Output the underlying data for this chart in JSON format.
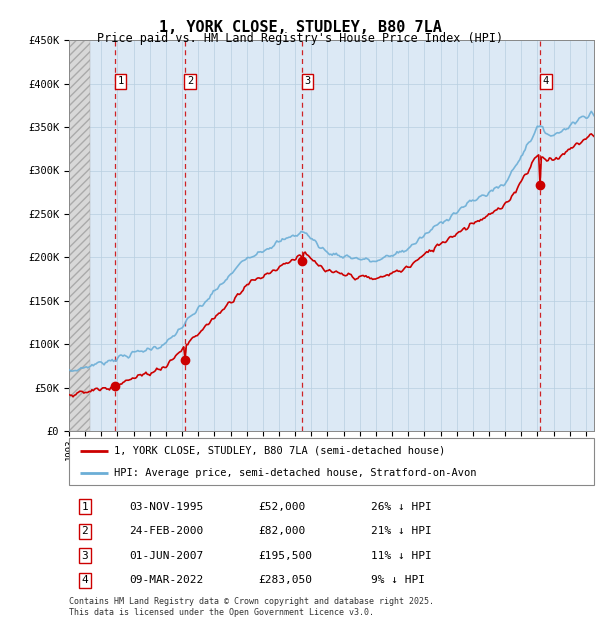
{
  "title": "1, YORK CLOSE, STUDLEY, B80 7LA",
  "subtitle": "Price paid vs. HM Land Registry's House Price Index (HPI)",
  "xlim_start": 1993.0,
  "xlim_end": 2025.5,
  "ylim_min": 0,
  "ylim_max": 450000,
  "yticks": [
    0,
    50000,
    100000,
    150000,
    200000,
    250000,
    300000,
    350000,
    400000,
    450000
  ],
  "ytick_labels": [
    "£0",
    "£50K",
    "£100K",
    "£150K",
    "£200K",
    "£250K",
    "£300K",
    "£350K",
    "£400K",
    "£450K"
  ],
  "purchase_dates": [
    1995.84,
    2000.15,
    2007.42,
    2022.18
  ],
  "purchase_prices": [
    52000,
    82000,
    195500,
    283050
  ],
  "purchase_labels": [
    "1",
    "2",
    "3",
    "4"
  ],
  "legend_entries": [
    "1, YORK CLOSE, STUDLEY, B80 7LA (semi-detached house)",
    "HPI: Average price, semi-detached house, Stratford-on-Avon"
  ],
  "table_rows": [
    [
      "1",
      "03-NOV-1995",
      "£52,000",
      "26% ↓ HPI"
    ],
    [
      "2",
      "24-FEB-2000",
      "£82,000",
      "21% ↓ HPI"
    ],
    [
      "3",
      "01-JUN-2007",
      "£195,500",
      "11% ↓ HPI"
    ],
    [
      "4",
      "09-MAR-2022",
      "£283,050",
      "9% ↓ HPI"
    ]
  ],
  "footer": "Contains HM Land Registry data © Crown copyright and database right 2025.\nThis data is licensed under the Open Government Licence v3.0.",
  "hpi_color": "#6baed6",
  "price_color": "#cc0000",
  "vline_color": "#cc0000",
  "plot_bg_color": "#dce9f5",
  "grid_color": "#b8cfe0",
  "hatch_color": "#c8c8c8"
}
